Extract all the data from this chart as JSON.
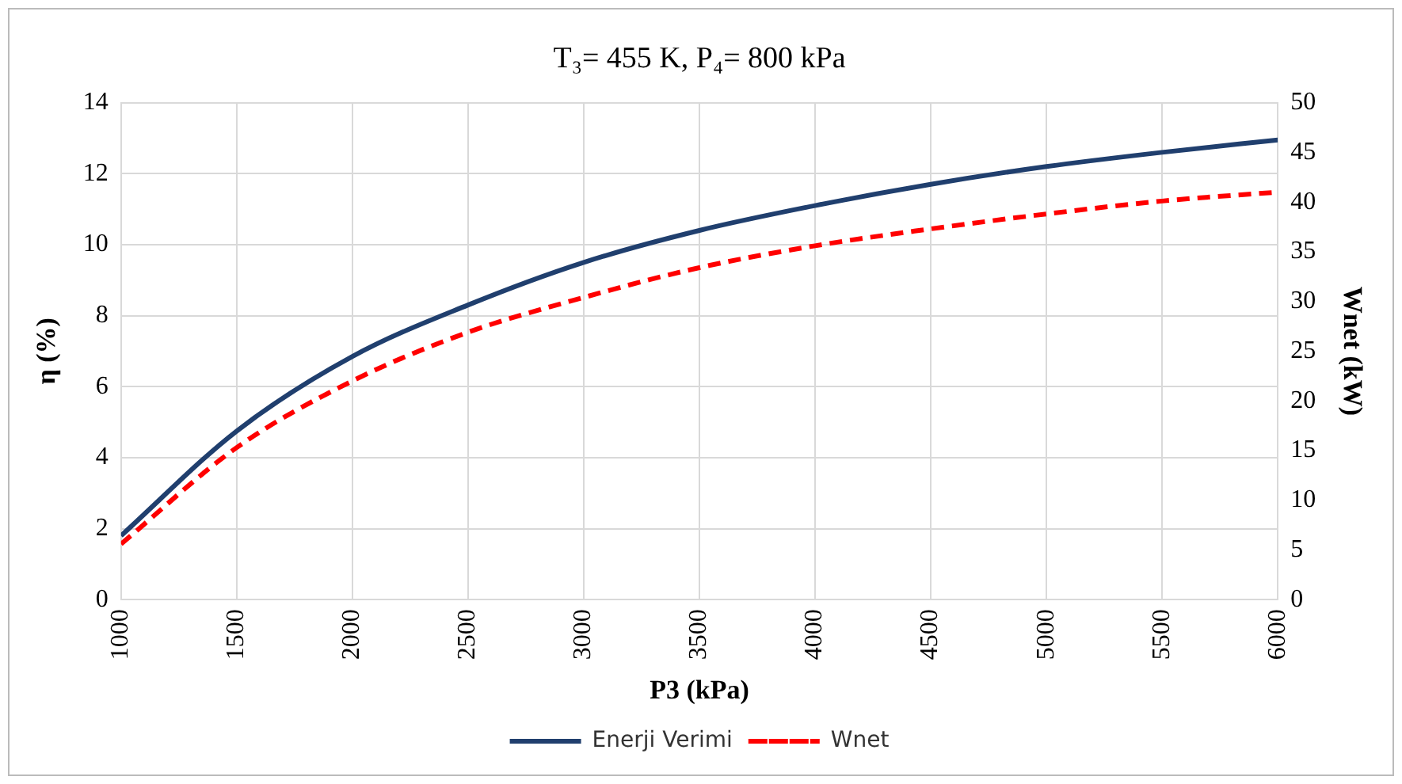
{
  "chart_data": {
    "type": "line",
    "title": "T₃= 455 K, P₄= 800 kPa",
    "xlabel": "P3 (kPa)",
    "ylabel": "η (%)",
    "y2label": "Wnet (kW)",
    "x": [
      1000,
      1500,
      2000,
      2500,
      3000,
      3500,
      4000,
      4500,
      5000,
      5500,
      6000
    ],
    "xlim": [
      1000,
      6000
    ],
    "xticks": [
      1000,
      1500,
      2000,
      2500,
      3000,
      3500,
      4000,
      4500,
      5000,
      5500,
      6000
    ],
    "ylim": [
      0,
      14
    ],
    "yticks": [
      0,
      2,
      4,
      6,
      8,
      10,
      12,
      14
    ],
    "y2lim": [
      0,
      50
    ],
    "y2ticks": [
      0,
      5,
      10,
      15,
      20,
      25,
      30,
      35,
      40,
      45,
      50
    ],
    "series": [
      {
        "name": "Enerji Verimi",
        "color": "#203f6e",
        "line_style": "solid",
        "values": [
          1.8,
          4.75,
          6.85,
          8.3,
          9.5,
          10.4,
          11.1,
          11.7,
          12.2,
          12.6,
          12.95
        ]
      },
      {
        "name": "Wnet",
        "color": "#ff0000",
        "line_style": "dashed",
        "axis": "y2",
        "values": [
          5.6,
          15.3,
          22,
          26.9,
          30.4,
          33.4,
          35.6,
          37.3,
          38.8,
          40.1,
          41
        ]
      }
    ],
    "grid": true,
    "legend": "bottom",
    "marker": "none"
  }
}
